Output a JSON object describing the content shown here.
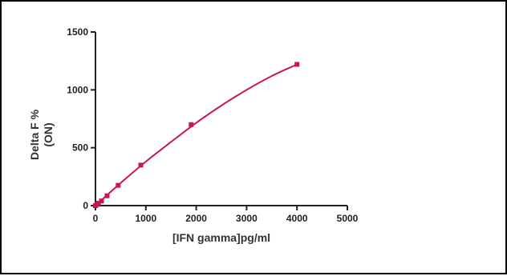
{
  "chart_data": {
    "type": "scatter",
    "xlabel": "[IFN gamma]pg/ml",
    "ylabel_lines": [
      "Delta F %",
      "(ON)"
    ],
    "xlim": [
      0,
      5000
    ],
    "ylim": [
      0,
      1500
    ],
    "xticks": [
      0,
      1000,
      2000,
      3000,
      4000,
      5000
    ],
    "yticks": [
      0,
      500,
      1000,
      1500
    ],
    "grid": false,
    "legend": "none",
    "series": [
      {
        "points": [
          {
            "x": 0,
            "y": 0
          },
          {
            "x": 30,
            "y": 10
          },
          {
            "x": 60,
            "y": 20
          },
          {
            "x": 120,
            "y": 40
          },
          {
            "x": 230,
            "y": 85
          },
          {
            "x": 450,
            "y": 175
          },
          {
            "x": 900,
            "y": 350
          },
          {
            "x": 1900,
            "y": 700
          },
          {
            "x": 4000,
            "y": 1220
          }
        ],
        "fit_curve": [
          {
            "x": 0,
            "y": 0
          },
          {
            "x": 500,
            "y": 195
          },
          {
            "x": 1000,
            "y": 380
          },
          {
            "x": 1500,
            "y": 550
          },
          {
            "x": 2000,
            "y": 715
          },
          {
            "x": 2500,
            "y": 865
          },
          {
            "x": 3000,
            "y": 1000
          },
          {
            "x": 3500,
            "y": 1120
          },
          {
            "x": 4000,
            "y": 1220
          }
        ],
        "color": "#c8174b"
      }
    ]
  }
}
